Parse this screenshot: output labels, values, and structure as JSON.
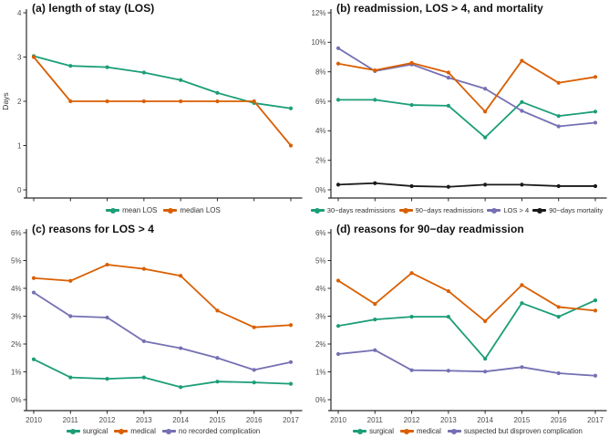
{
  "style": {
    "background": "#ffffff",
    "axis_color": "#2b2b2b",
    "tick_label_color": "#4d4d4d",
    "title_color": "#111111",
    "legend_text_color": "#333333",
    "series_palette": {
      "green": "#1b9e77",
      "orange": "#d95f02",
      "purple": "#7570b3",
      "black": "#1a1a1a"
    }
  },
  "chart_data": [
    {
      "id": "a",
      "type": "line",
      "title": "(a) length of stay (LOS)",
      "ylabel": "Days",
      "ylim": [
        0,
        4
      ],
      "ytick_values": [
        0,
        1,
        2,
        3,
        4
      ],
      "ytick_labels": [
        "0",
        "1",
        "2",
        "3",
        "4"
      ],
      "show_x_labels": false,
      "grid": false,
      "legend_position": "bottom",
      "categories": [
        "2010",
        "2011",
        "2012",
        "2013",
        "2014",
        "2015",
        "2016",
        "2017"
      ],
      "series": [
        {
          "name": "mean LOS",
          "color": "#1b9e77",
          "values": [
            3.02,
            2.8,
            2.77,
            2.65,
            2.48,
            2.19,
            1.96,
            1.84
          ]
        },
        {
          "name": "median LOS",
          "color": "#d95f02",
          "values": [
            3,
            2,
            2,
            2,
            2,
            2,
            2,
            1
          ]
        }
      ],
      "draw_order": [
        0,
        1
      ]
    },
    {
      "id": "b",
      "type": "line",
      "title": "(b) readmission, LOS > 4, and mortality",
      "ylabel": "",
      "ylim": [
        0,
        12
      ],
      "ytick_values": [
        0,
        2,
        4,
        6,
        8,
        10,
        12
      ],
      "ytick_labels": [
        "0%",
        "2%",
        "4%",
        "6%",
        "8%",
        "10%",
        "12%"
      ],
      "show_x_labels": false,
      "grid": false,
      "legend_position": "bottom",
      "categories": [
        "2010",
        "2011",
        "2012",
        "2013",
        "2014",
        "2015",
        "2016",
        "2017"
      ],
      "series": [
        {
          "name": "30−days readmissions",
          "color": "#1b9e77",
          "values": [
            6.1,
            6.1,
            5.75,
            5.7,
            3.55,
            5.95,
            5.0,
            5.3
          ]
        },
        {
          "name": "90−days readmissions",
          "color": "#d95f02",
          "values": [
            8.55,
            8.1,
            8.6,
            7.95,
            5.3,
            8.75,
            7.25,
            7.65
          ]
        },
        {
          "name": "LOS > 4",
          "color": "#7570b3",
          "values": [
            9.6,
            8.05,
            8.5,
            7.6,
            6.85,
            5.35,
            4.3,
            4.55
          ]
        },
        {
          "name": "90−days mortality",
          "color": "#1a1a1a",
          "values": [
            0.35,
            0.45,
            0.25,
            0.2,
            0.35,
            0.35,
            0.25,
            0.25
          ]
        }
      ],
      "draw_order": [
        0,
        2,
        1,
        3
      ]
    },
    {
      "id": "c",
      "type": "line",
      "title": "(c) reasons for LOS > 4",
      "ylabel": "",
      "ylim": [
        0,
        6
      ],
      "ytick_values": [
        0,
        1,
        2,
        3,
        4,
        5,
        6
      ],
      "ytick_labels": [
        "0%",
        "1%",
        "2%",
        "3%",
        "4%",
        "5%",
        "6%"
      ],
      "show_x_labels": true,
      "grid": false,
      "legend_position": "bottom",
      "categories": [
        "2010",
        "2011",
        "2012",
        "2013",
        "2014",
        "2015",
        "2016",
        "2017"
      ],
      "series": [
        {
          "name": "surgical",
          "color": "#1b9e77",
          "values": [
            1.45,
            0.8,
            0.75,
            0.8,
            0.45,
            0.65,
            0.62,
            0.57
          ]
        },
        {
          "name": "medical",
          "color": "#d95f02",
          "values": [
            4.37,
            4.27,
            4.85,
            4.7,
            4.45,
            3.2,
            2.6,
            2.68
          ]
        },
        {
          "name": "no recorded complication",
          "color": "#7570b3",
          "values": [
            3.85,
            3.0,
            2.95,
            2.1,
            1.85,
            1.5,
            1.07,
            1.35
          ]
        }
      ],
      "draw_order": [
        0,
        2,
        1
      ]
    },
    {
      "id": "d",
      "type": "line",
      "title": "(d) reasons for 90−day readmission",
      "ylabel": "",
      "ylim": [
        0,
        6
      ],
      "ytick_values": [
        0,
        1,
        2,
        3,
        4,
        5,
        6
      ],
      "ytick_labels": [
        "0%",
        "1%",
        "2%",
        "3%",
        "4%",
        "5%",
        "6%"
      ],
      "show_x_labels": true,
      "grid": false,
      "legend_position": "bottom",
      "categories": [
        "2010",
        "2011",
        "2012",
        "2013",
        "2014",
        "2015",
        "2016",
        "2017"
      ],
      "series": [
        {
          "name": "surgical",
          "color": "#1b9e77",
          "values": [
            2.65,
            2.88,
            2.98,
            2.98,
            1.47,
            3.47,
            2.98,
            3.57
          ]
        },
        {
          "name": "medical",
          "color": "#d95f02",
          "values": [
            4.28,
            3.44,
            4.55,
            3.9,
            2.82,
            4.12,
            3.33,
            3.2
          ]
        },
        {
          "name": "suspected but disproven complication",
          "color": "#7570b3",
          "values": [
            1.64,
            1.78,
            1.06,
            1.04,
            1.01,
            1.17,
            0.95,
            0.86
          ]
        }
      ],
      "draw_order": [
        0,
        2,
        1
      ]
    }
  ]
}
